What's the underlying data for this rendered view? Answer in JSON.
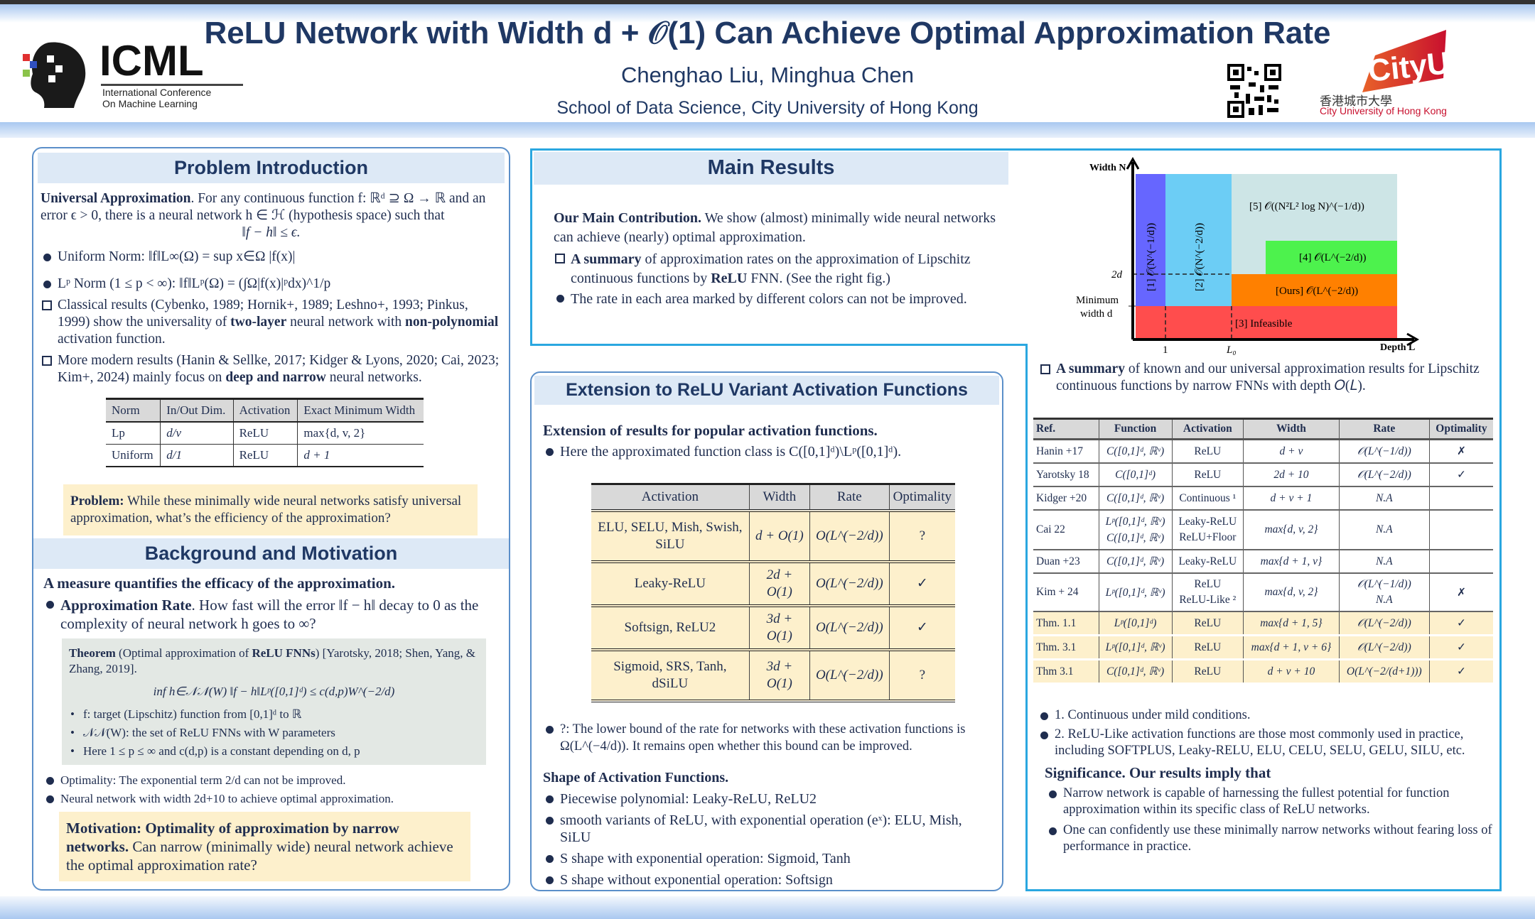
{
  "header": {
    "title": "ReLU Network with Width d + 𝒪(1) Can Achieve Optimal Approximation Rate",
    "authors": "Chenghao Liu, Minghua Chen",
    "affiliation": "School of Data Science, City University of Hong Kong",
    "icml_logo": {
      "text": "ICML",
      "subtitle1": "International Conference",
      "subtitle2": "On Machine Learning"
    },
    "cityu_logo": {
      "text": "CityU",
      "chinese": "香港城市大學",
      "english": "City University of Hong Kong",
      "color": "#c8102e"
    },
    "qr_icon": "qr-code-icon"
  },
  "intro": {
    "heading": "Problem Introduction",
    "ua_bold": "Universal Approximation",
    "ua_text": ". For any continuous function f: ℝᵈ ⊇ Ω → ℝ and an error ϵ > 0, there is a neural network h ∈ ℋ (hypothesis space) such that",
    "ua_eq": "‖f − h‖ ≤ ϵ.",
    "uniform": "Uniform Norm: ‖f‖L∞(Ω) = sup x∈Ω |f(x)|",
    "lp": "Lᵖ Norm (1 ≤ p < ∞): ‖f‖Lᵖ(Ω) = (∫Ω|f(x)|ᵖdx)^1/p",
    "classical": [
      "Classical results (Cybenko, 1989; Hornik+, 1989; Leshno+, 1993; Pinkus, 1999)  show the universality of ",
      "two-layer",
      " neural network with ",
      "non-polynomial",
      " activation function."
    ],
    "modern": [
      "More modern results (Hanin & Sellke, 2017; Kidger & Lyons, 2020; Cai, 2023; Kim+, 2024)  mainly focus on ",
      "deep and narrow",
      " neural networks."
    ],
    "table": {
      "headers": [
        "Norm",
        "In/Out Dim.",
        "Activation",
        "Exact Minimum Width"
      ],
      "rows": [
        [
          "Lp",
          "d/v",
          "ReLU",
          "max{d, v, 2}"
        ],
        [
          "Uniform",
          "d/1",
          "ReLU",
          "d + 1"
        ]
      ]
    },
    "problem_bold": "Problem:",
    "problem_text": " While these minimally wide neural networks satisfy universal approximation, what’s the efficiency of the approximation?"
  },
  "background": {
    "heading": "Background and Motivation",
    "subhead": "A measure quantifies the efficacy of the approximation.",
    "rate_bold": "Approximation Rate",
    "rate_text": ". How fast will the error ‖f − h‖ decay to 0 as the complexity of neural network h goes to ∞?",
    "theorem": {
      "bold1": "Theorem",
      "t1": " (Optimal approximation of ",
      "bold2": "ReLU FNNs",
      "t2": ") [Yarotsky, 2018; Shen, Yang, & Zhang, 2019].",
      "eq": "inf h∈𝒩𝒩(W) ‖f − h‖Lᵖ([0,1]ᵈ) ≤ c(d,p)W^(−2/d)",
      "bullets": [
        "f: target (Lipschitz) function from [0,1]ᵈ to ℝ",
        "𝒩𝒩(W): the set of ReLU FNNs with W parameters",
        "Here 1 ≤ p ≤ ∞ and c(d,p) is a constant depending on d, p"
      ]
    },
    "optimality": "Optimality: The exponential term 2/d can not be improved.",
    "width": "Neural network with width 2d+10 to achieve optimal approximation.",
    "motivation_bold": "Motivation: Optimality of approximation by narrow networks.",
    "motivation_text": " Can narrow (minimally wide) neural network achieve the optimal approximation rate?"
  },
  "main": {
    "heading": "Main Results",
    "contrib_bold": "Our Main Contribution.",
    "contrib_text": " We show (almost) minimally wide neural networks can achieve (nearly) optimal approximation.",
    "summary": [
      "A summary",
      " of approximation rates on the approximation of Lipschitz continuous functions by ",
      "ReLU",
      " FNN. (See the right fig.)"
    ],
    "rate_note": "The rate in each area marked by different colors can not be improved.",
    "figure": {
      "y_axis": "Width N",
      "x_axis": "Depth L",
      "y_ticks": [
        "2d",
        "Minimum",
        "width d"
      ],
      "x_ticks": [
        "1",
        "L₀"
      ],
      "regions": [
        {
          "label": "[1] 𝒪(N^(−1/d))",
          "color": "#6666ff"
        },
        {
          "label": "[2] 𝒪(N^(−2/d))",
          "color": "#6ccdf5"
        },
        {
          "label": "[5] 𝒪((N²L² log N)^(−1/d))",
          "color": "#cde5e6"
        },
        {
          "label": "[4] 𝒪(L^(−2/d))",
          "color": "#4df24d"
        },
        {
          "label": "[Ours] 𝒪(L^(−2/d))",
          "color": "#ff8000"
        },
        {
          "label": "[3] Infeasible",
          "color": "#ff4d4d"
        }
      ]
    },
    "fig_caption": [
      "A summary",
      " of known and our universal approximation results for Lipschitz continuous functions by narrow FNNs with depth 𝑂(𝐿)."
    ],
    "table": {
      "headers": [
        "Ref.",
        "Function",
        "Activation",
        "Width",
        "Rate",
        "Optimality"
      ],
      "rows": [
        {
          "ref": "Hanin +17",
          "fn": "C([0,1]ᵈ, ℝᵛ)",
          "act": "ReLU",
          "width": "d + v",
          "rate": "𝒪(L^(−1/d))",
          "opt": "✗",
          "hl": false
        },
        {
          "ref": "Yarotsky 18",
          "fn": "C([0,1]ᵈ)",
          "act": "ReLU",
          "width": "2d + 10",
          "rate": "𝒪(L^(−2/d))",
          "opt": "✓",
          "hl": false
        },
        {
          "ref": "Kidger +20",
          "fn": "C([0,1]ᵈ, ℝᵛ)",
          "act": "Continuous ¹",
          "width": "d + v + 1",
          "rate": "N.A",
          "opt": "",
          "hl": false
        },
        {
          "ref": "Cai 22",
          "fn": "Lᵖ([0,1]ᵈ, ℝᵛ) / C([0,1]ᵈ, ℝᵛ)",
          "act": "Leaky-ReLU / ReLU+Floor",
          "width": "max{d, v, 2}",
          "rate": "N.A",
          "opt": "",
          "hl": false
        },
        {
          "ref": "Duan +23",
          "fn": "C([0,1]ᵈ, ℝᵛ)",
          "act": "Leaky-ReLU",
          "width": "max{d + 1, v}",
          "rate": "N.A",
          "opt": "",
          "hl": false
        },
        {
          "ref": "Kim + 24",
          "fn": "Lᵖ([0,1]ᵈ, ℝᵛ)",
          "act": "ReLU / ReLU-Like ²",
          "width": "max{d, v, 2}",
          "rate": "𝒪(L^(−1/d)) / N.A",
          "opt": "✗",
          "hl": false
        },
        {
          "ref": "Thm. 1.1",
          "fn": "Lᵖ([0,1]ᵈ)",
          "act": "ReLU",
          "width": "max{d + 1, 5}",
          "rate": "𝒪(L^(−2/d))",
          "opt": "✓",
          "hl": true
        },
        {
          "ref": "Thm. 3.1",
          "fn": "Lᵖ([0,1]ᵈ, ℝᵛ)",
          "act": "ReLU",
          "width": "max{d + 1, v + 6}",
          "rate": "𝒪(L^(−2/d))",
          "opt": "✓",
          "hl": true
        },
        {
          "ref": "Thm 3.1",
          "fn": "C([0,1]ᵈ, ℝᵛ)",
          "act": "ReLU",
          "width": "d + v + 10",
          "rate": "O(L^(−2/(d+1)))",
          "opt": "✓",
          "hl": true
        }
      ]
    },
    "notes": [
      "1. Continuous under mild conditions.",
      "2. ReLU-Like activation functions are those most commonly used in practice, including  SOFTPLUS, Leaky-RELU, ELU, CELU, SELU, GELU, SILU, etc."
    ],
    "significance_head": "Significance. Our results imply that",
    "significance": [
      "Narrow network is capable of harnessing the fullest potential for function approximation within its specific class of ReLU networks.",
      "One can confidently use these minimally narrow networks without fearing loss of performance in practice."
    ]
  },
  "extension": {
    "heading": "Extension to ReLU Variant Activation Functions",
    "subhead": "Extension of results for popular activation functions.",
    "class_text": "Here the approximated function class is C([0,1]ᵈ)\\Lᵖ([0,1]ᵈ).",
    "table": {
      "headers": [
        "Activation",
        "Width",
        "Rate",
        "Optimality"
      ],
      "rows": [
        [
          "ELU, SELU, Mish, Swish, SiLU",
          "d + O(1)",
          "O(L^(−2/d))",
          "?"
        ],
        [
          "Leaky-ReLU",
          "2d + O(1)",
          "O(L^(−2/d))",
          "✓"
        ],
        [
          "Softsign, ReLU2",
          "3d + O(1)",
          "O(L^(−2/d))",
          "✓"
        ],
        [
          "Sigmoid, SRS, Tanh, dSiLU",
          "3d + O(1)",
          "O(L^(−2/d))",
          "?"
        ]
      ]
    },
    "lower_bound": "?: The lower bound of the rate for networks with these activation functions is Ω(L^(−4/d)). It remains open whether this bound can be improved.",
    "shape_head": "Shape of Activation Functions.",
    "shapes": [
      "Piecewise polynomial: Leaky-ReLU, ReLU2",
      "smooth variants of ReLU, with exponential operation (eˣ): ELU, Mish, SiLU",
      "S shape with exponential operation: Sigmoid, Tanh",
      "S shape without exponential operation: Softsign"
    ]
  }
}
